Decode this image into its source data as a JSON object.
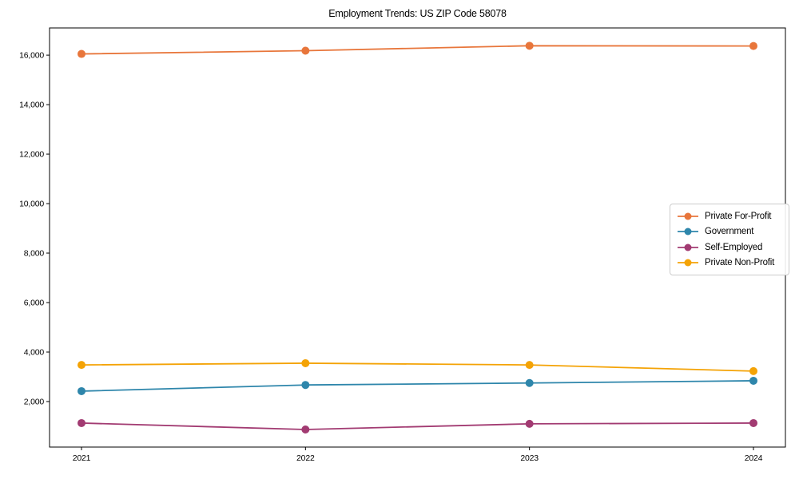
{
  "chart_data": {
    "type": "line",
    "title": "Employment Trends: US ZIP Code 58078",
    "x": [
      2021,
      2022,
      2023,
      2024
    ],
    "x_tick_labels": [
      "2021",
      "2022",
      "2023",
      "2024"
    ],
    "series": [
      {
        "name": "Private For-Profit",
        "color": "#E8763B",
        "values": [
          16050,
          16180,
          16380,
          16370
        ]
      },
      {
        "name": "Government",
        "color": "#2E86AB",
        "values": [
          2420,
          2670,
          2750,
          2840
        ]
      },
      {
        "name": "Self-Employed",
        "color": "#A23B72",
        "values": [
          1130,
          870,
          1100,
          1130
        ]
      },
      {
        "name": "Private Non-Profit",
        "color": "#F4A306",
        "values": [
          3480,
          3550,
          3480,
          3230
        ]
      }
    ],
    "ylim": [
      160,
      17100
    ],
    "yticks": [
      2000,
      4000,
      6000,
      8000,
      10000,
      12000,
      14000,
      16000
    ],
    "ytick_labels": [
      "2,000",
      "4,000",
      "6,000",
      "8,000",
      "10,000",
      "12,000",
      "14,000",
      "16,000"
    ],
    "grid": false,
    "legend_position": "right",
    "legend_border_color": "#cccccc",
    "axis_color": "#000000",
    "marker": "circle",
    "xlabel": "",
    "ylabel": ""
  }
}
